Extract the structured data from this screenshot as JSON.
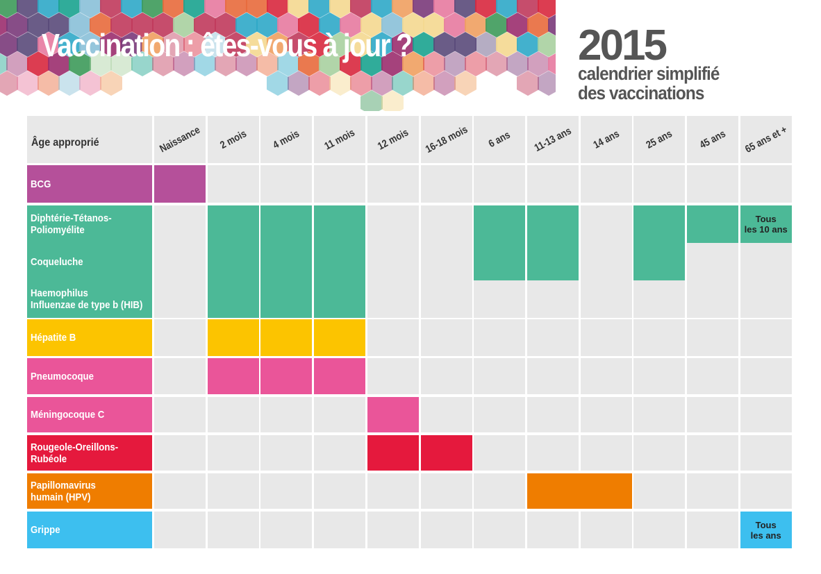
{
  "header": {
    "title": "Vaccination : êtes-vous à jour ?",
    "year": "2015",
    "subtitle_line1": "calendrier simplifié",
    "subtitle_line2": "des vaccinations"
  },
  "table": {
    "age_label": "Âge approprié",
    "columns": [
      "Naissance",
      "2 mois",
      "4 mois",
      "11 mois",
      "12 mois",
      "16-18 mois",
      "6 ans",
      "11-13 ans",
      "14 ans",
      "25 ans",
      "45 ans",
      "65 ans et +"
    ],
    "rows": [
      {
        "id": "bcg",
        "labels": [
          "BCG"
        ],
        "color": "#b5509a",
        "fills": [
          {
            "cols": [
              0
            ],
            "level": 1
          }
        ]
      },
      {
        "id": "dtp",
        "labels": [
          "Diphtérie-Tétanos-\nPoliomyélite",
          "Coqueluche",
          "Haemophilus\nInfluenzae de type b (HIB)"
        ],
        "color": "#4cb997",
        "fills": [
          {
            "cols": [
              1
            ],
            "level": 1
          },
          {
            "cols": [
              2
            ],
            "level": 1
          },
          {
            "cols": [
              3
            ],
            "level": 1
          },
          {
            "cols": [
              6
            ],
            "level": 0.667
          },
          {
            "cols": [
              7
            ],
            "level": 0.667
          },
          {
            "cols": [
              9
            ],
            "level": 0.667
          },
          {
            "cols": [
              10
            ],
            "level": 0.333
          },
          {
            "cols": [
              11
            ],
            "level": 0.333,
            "note": "Tous\nles 10 ans"
          }
        ]
      },
      {
        "id": "hepb",
        "labels": [
          "Hépatite B"
        ],
        "color": "#fcc400",
        "fills": [
          {
            "cols": [
              1
            ],
            "level": 1
          },
          {
            "cols": [
              2
            ],
            "level": 1
          },
          {
            "cols": [
              3
            ],
            "level": 1
          }
        ]
      },
      {
        "id": "pneumo",
        "labels": [
          "Pneumocoque"
        ],
        "color": "#ea5599",
        "fills": [
          {
            "cols": [
              1
            ],
            "level": 1
          },
          {
            "cols": [
              2
            ],
            "level": 1
          },
          {
            "cols": [
              3
            ],
            "level": 1
          }
        ]
      },
      {
        "id": "menin",
        "labels": [
          "Méningocoque C"
        ],
        "color": "#ea5599",
        "fills": [
          {
            "cols": [
              4
            ],
            "level": 1
          }
        ]
      },
      {
        "id": "ror",
        "labels": [
          "Rougeole-Oreillons-\nRubéole"
        ],
        "color": "#e5193d",
        "fills": [
          {
            "cols": [
              4
            ],
            "level": 1
          },
          {
            "cols": [
              5
            ],
            "level": 1
          }
        ]
      },
      {
        "id": "hpv",
        "labels": [
          "Papillomavirus\nhumain (HPV)"
        ],
        "color": "#ef7d00",
        "fills": [
          {
            "cols": [
              7,
              8
            ],
            "level": 1
          }
        ]
      },
      {
        "id": "grippe",
        "labels": [
          "Grippe"
        ],
        "color": "#3dbfef",
        "fills": [
          {
            "cols": [
              11
            ],
            "level": 1,
            "note": "Tous\nles ans"
          }
        ]
      }
    ]
  }
}
